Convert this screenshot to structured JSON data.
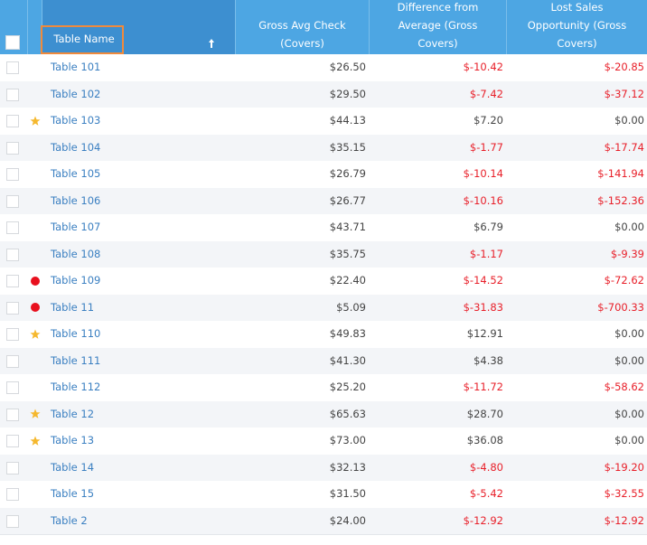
{
  "table": {
    "columns": [
      "Table Name",
      "Gross Avg Check (Covers)",
      "Difference from Average (Gross Covers)",
      "Lost Sales Opportunity (Gross Covers)"
    ],
    "rows": [
      {
        "icon": null,
        "name": "Table 101",
        "gross": "$26.50",
        "diff": "$-10.42",
        "lost": "$-20.85"
      },
      {
        "icon": null,
        "name": "Table 102",
        "gross": "$29.50",
        "diff": "$-7.42",
        "lost": "$-37.12"
      },
      {
        "icon": "star",
        "name": "Table 103",
        "gross": "$44.13",
        "diff": "$7.20",
        "lost": "$0.00"
      },
      {
        "icon": null,
        "name": "Table 104",
        "gross": "$35.15",
        "diff": "$-1.77",
        "lost": "$-17.74"
      },
      {
        "icon": null,
        "name": "Table 105",
        "gross": "$26.79",
        "diff": "$-10.14",
        "lost": "$-141.94"
      },
      {
        "icon": null,
        "name": "Table 106",
        "gross": "$26.77",
        "diff": "$-10.16",
        "lost": "$-152.36"
      },
      {
        "icon": null,
        "name": "Table 107",
        "gross": "$43.71",
        "diff": "$6.79",
        "lost": "$0.00"
      },
      {
        "icon": null,
        "name": "Table 108",
        "gross": "$35.75",
        "diff": "$-1.17",
        "lost": "$-9.39"
      },
      {
        "icon": "dot",
        "name": "Table 109",
        "gross": "$22.40",
        "diff": "$-14.52",
        "lost": "$-72.62"
      },
      {
        "icon": "dot",
        "name": "Table 11",
        "gross": "$5.09",
        "diff": "$-31.83",
        "lost": "$-700.33"
      },
      {
        "icon": "star",
        "name": "Table 110",
        "gross": "$49.83",
        "diff": "$12.91",
        "lost": "$0.00"
      },
      {
        "icon": null,
        "name": "Table 111",
        "gross": "$41.30",
        "diff": "$4.38",
        "lost": "$0.00"
      },
      {
        "icon": null,
        "name": "Table 112",
        "gross": "$25.20",
        "diff": "$-11.72",
        "lost": "$-58.62"
      },
      {
        "icon": "star",
        "name": "Table 12",
        "gross": "$65.63",
        "diff": "$28.70",
        "lost": "$0.00"
      },
      {
        "icon": "star",
        "name": "Table 13",
        "gross": "$73.00",
        "diff": "$36.08",
        "lost": "$0.00"
      },
      {
        "icon": null,
        "name": "Table 14",
        "gross": "$32.13",
        "diff": "$-4.80",
        "lost": "$-19.20"
      },
      {
        "icon": null,
        "name": "Table 15",
        "gross": "$31.50",
        "diff": "$-5.42",
        "lost": "$-32.55"
      },
      {
        "icon": null,
        "name": "Table 2",
        "gross": "$24.00",
        "diff": "$-12.92",
        "lost": "$-12.92"
      }
    ]
  }
}
